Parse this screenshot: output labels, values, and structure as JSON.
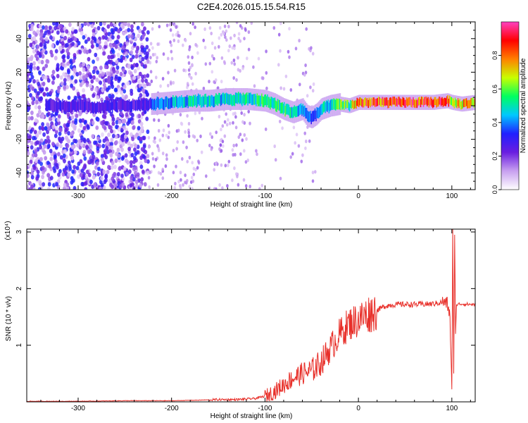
{
  "title": "C2E4.2026.015.15.54.R15",
  "chart_data": [
    {
      "type": "heatmap",
      "title": "C2E4.2026.015.15.54.R15",
      "xlabel": "Height of straight line (km)",
      "ylabel": "Frequency (Hz)",
      "xlim": [
        -355,
        125
      ],
      "ylim": [
        -50,
        50
      ],
      "xticks": [
        -300,
        -200,
        -100,
        0,
        100
      ],
      "yticks": [
        -40,
        -20,
        0,
        20,
        40
      ],
      "colorbar": {
        "label": "Normalized spectral amplitude",
        "range": [
          0,
          1
        ],
        "ticks": [
          "0.0",
          "0.2",
          "0.4",
          "0.6",
          "0.8"
        ],
        "colors": [
          "#ffffff",
          "#c8a0f0",
          "#6a1de0",
          "#2020ff",
          "#00c8ff",
          "#00ff60",
          "#c8ff00",
          "#ff8000",
          "#ff0000",
          "#ff40c0"
        ]
      },
      "ridge": {
        "x": [
          -325,
          -300,
          -280,
          -260,
          -240,
          -222,
          -200,
          -180,
          -160,
          -140,
          -120,
          -100,
          -90,
          -80,
          -70,
          -60,
          -55,
          -50,
          -45,
          -40,
          -30,
          -20,
          -10,
          0,
          20,
          40,
          60,
          80,
          95,
          100,
          110,
          125
        ],
        "freq": [
          0,
          0,
          -1,
          0,
          0,
          1,
          2,
          3,
          3,
          4,
          4,
          3,
          1,
          -2,
          -4,
          -2,
          -6,
          -7,
          -5,
          -2,
          0,
          1,
          0,
          2,
          2,
          2,
          2,
          2,
          3,
          2,
          1,
          2
        ],
        "amplitude": [
          0.25,
          0.3,
          0.28,
          0.3,
          0.3,
          0.35,
          0.45,
          0.5,
          0.5,
          0.5,
          0.5,
          0.55,
          0.55,
          0.55,
          0.5,
          0.45,
          0.4,
          0.35,
          0.4,
          0.45,
          0.5,
          0.6,
          0.6,
          0.85,
          0.9,
          0.9,
          0.9,
          0.9,
          0.85,
          0.6,
          0.75,
          0.75
        ]
      }
    },
    {
      "type": "line",
      "xlabel": "Height of straight line (km)",
      "ylabel": "SNR (10 * v/v)",
      "scale_label": "(x10⁴)",
      "xlim": [
        -355,
        125
      ],
      "ylim": [
        0,
        3.05
      ],
      "xticks": [
        -300,
        -200,
        -100,
        0,
        100
      ],
      "yticks": [
        1,
        2,
        3
      ],
      "color": "#e8302a",
      "series": [
        {
          "name": "SNR",
          "x": [
            -355,
            -300,
            -250,
            -200,
            -170,
            -150,
            -130,
            -110,
            -100,
            -90,
            -80,
            -70,
            -60,
            -50,
            -40,
            -30,
            -20,
            -10,
            0,
            10,
            20,
            30,
            40,
            60,
            80,
            90,
            95,
            98,
            100,
            101,
            102,
            103,
            104,
            105,
            110,
            120,
            125
          ],
          "y": [
            0.01,
            0.01,
            0.02,
            0.02,
            0.03,
            0.04,
            0.04,
            0.06,
            0.1,
            0.18,
            0.3,
            0.42,
            0.5,
            0.55,
            0.7,
            0.95,
            1.2,
            1.38,
            1.45,
            1.55,
            1.62,
            1.7,
            1.72,
            1.72,
            1.73,
            1.76,
            1.74,
            1.5,
            0.22,
            3.05,
            0.5,
            2.95,
            1.2,
            1.72,
            1.73,
            1.72,
            1.72
          ]
        }
      ]
    }
  ]
}
